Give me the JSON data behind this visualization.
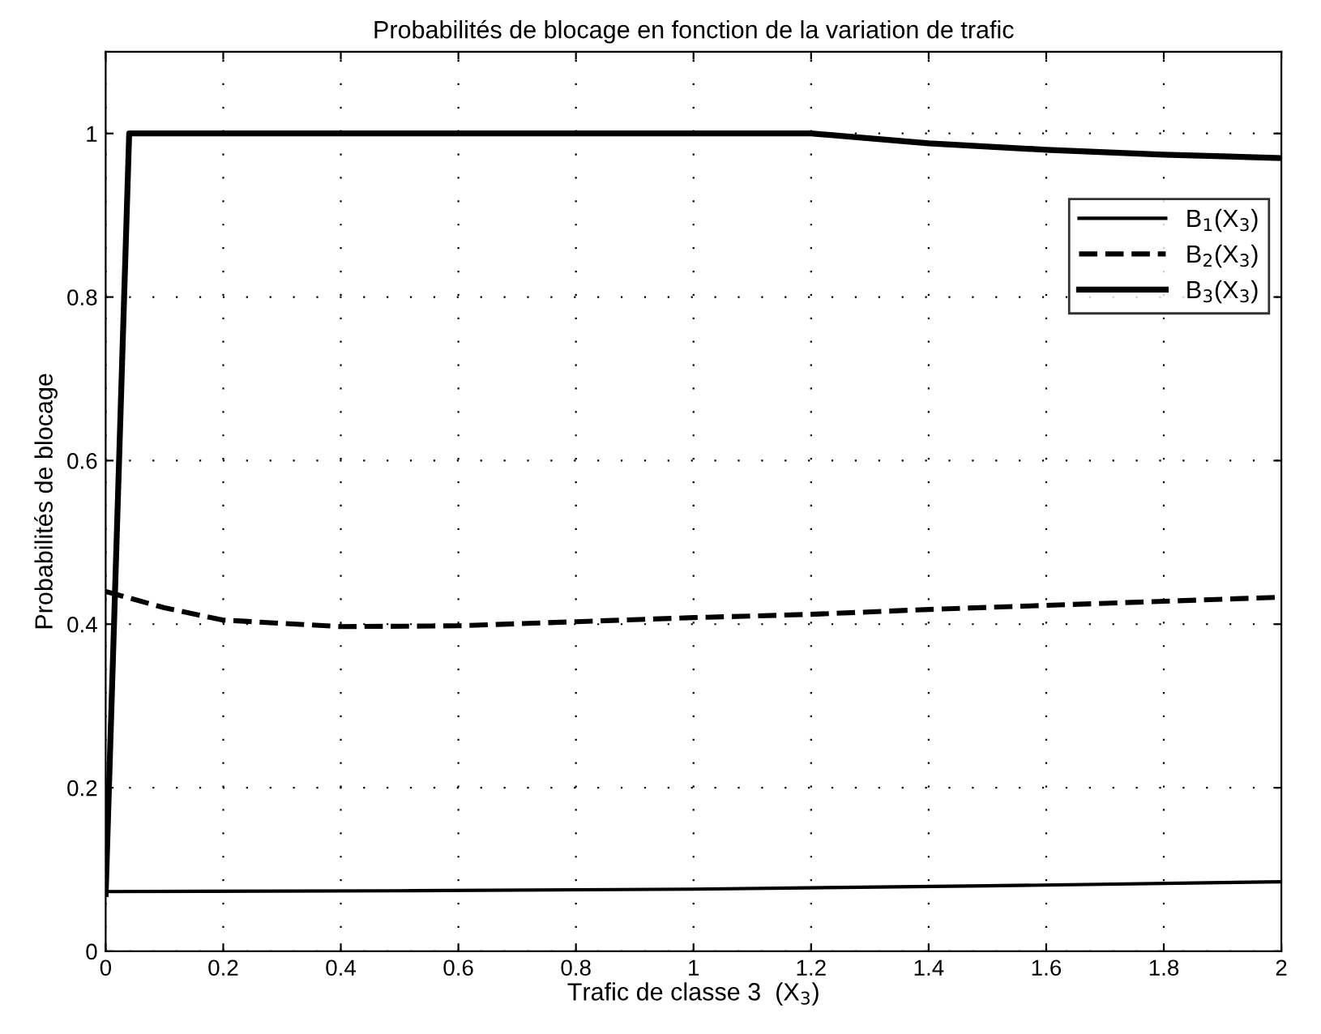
{
  "chart_data": {
    "type": "line",
    "title": "Probabilités de blocage en fonction de la variation de trafic",
    "xlabel": "Trafic de classe 3  (X$_{3}$)",
    "ylabel": "Probabilités de blocage",
    "xlim": [
      0,
      2
    ],
    "ylim": [
      0,
      1.1
    ],
    "xticks": [
      0,
      0.2,
      0.4,
      0.6,
      0.8,
      1,
      1.2,
      1.4,
      1.6,
      1.8,
      2
    ],
    "yticks": [
      0,
      0.2,
      0.4,
      0.6,
      0.8,
      1
    ],
    "grid": true,
    "legend": "top right",
    "series": [
      {
        "name": "B$_{1}$(X$_{3}$)",
        "color": "#000000",
        "line_style": "solid",
        "x": [
          0,
          0.5,
          1.0,
          1.5,
          2.0
        ],
        "values": [
          0.073,
          0.074,
          0.076,
          0.08,
          0.085
        ]
      },
      {
        "name": "B$_{2}$(X$_{3}$)",
        "color": "#000000",
        "line_style": "dashed",
        "x": [
          0,
          0.1,
          0.2,
          0.4,
          0.6,
          0.8,
          1.0,
          1.2,
          1.4,
          1.6,
          1.8,
          2.0
        ],
        "values": [
          0.44,
          0.42,
          0.405,
          0.397,
          0.398,
          0.403,
          0.408,
          0.412,
          0.418,
          0.423,
          0.428,
          0.433
        ]
      },
      {
        "name": "B$_{3}$(X$_{3}$)",
        "color": "#000000",
        "line_style": "solid",
        "x": [
          0,
          0.04,
          0.6,
          1.2,
          1.4,
          1.6,
          1.8,
          2.0
        ],
        "values": [
          0.07,
          1.0,
          1.0,
          1.0,
          0.988,
          0.98,
          0.974,
          0.97
        ]
      }
    ]
  }
}
